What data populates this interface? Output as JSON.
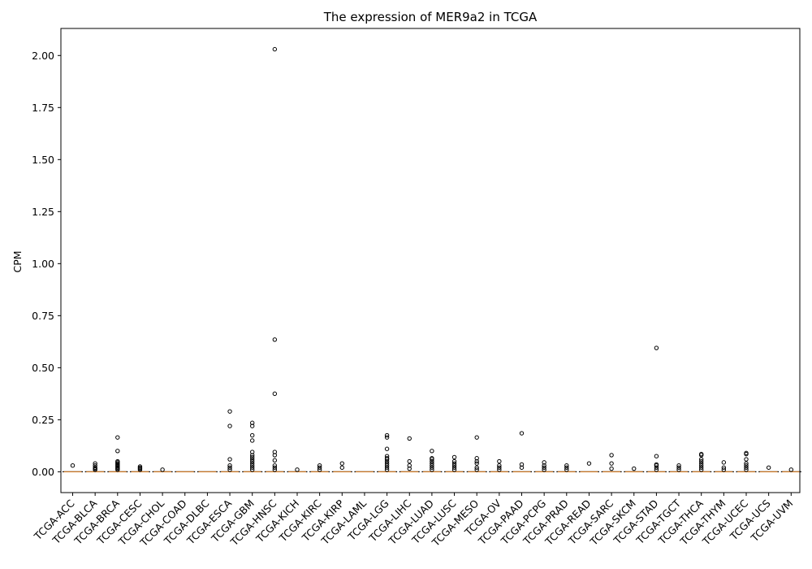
{
  "chart_data": {
    "type": "box",
    "title": "The expression of MER9a2 in TCGA",
    "xlabel": "",
    "ylabel": "CPM",
    "ylim": [
      -0.1,
      2.13
    ],
    "yticks": [
      "0.00",
      "0.25",
      "0.50",
      "0.75",
      "1.00",
      "1.25",
      "1.50",
      "1.75",
      "2.00"
    ],
    "grid": false,
    "categories": [
      "TCGA-ACC",
      "TCGA-BLCA",
      "TCGA-BRCA",
      "TCGA-CESC",
      "TCGA-CHOL",
      "TCGA-COAD",
      "TCGA-DLBC",
      "TCGA-ESCA",
      "TCGA-GBM",
      "TCGA-HNSC",
      "TCGA-KICH",
      "TCGA-KIRC",
      "TCGA-KIRP",
      "TCGA-LAML",
      "TCGA-LGG",
      "TCGA-LIHC",
      "TCGA-LUAD",
      "TCGA-LUSC",
      "TCGA-MESO",
      "TCGA-OV",
      "TCGA-PAAD",
      "TCGA-PCPG",
      "TCGA-PRAD",
      "TCGA-READ",
      "TCGA-SARC",
      "TCGA-SKCM",
      "TCGA-STAD",
      "TCGA-TGCT",
      "TCGA-THCA",
      "TCGA-THYM",
      "TCGA-UCEC",
      "TCGA-UCS",
      "TCGA-UVM"
    ],
    "medians": [
      0,
      0,
      0,
      0,
      0,
      0,
      0,
      0,
      0,
      0,
      0,
      0,
      0,
      0,
      0,
      0,
      0,
      0,
      0,
      0,
      0,
      0,
      0,
      0,
      0,
      0,
      0,
      0,
      0,
      0,
      0,
      0,
      0
    ],
    "outliers": [
      [
        0.03
      ],
      [
        0.04,
        0.03,
        0.02,
        0.015,
        0.01
      ],
      [
        0.165,
        0.1,
        0.05,
        0.045,
        0.04,
        0.035,
        0.03,
        0.025,
        0.02,
        0.015,
        0.01
      ],
      [
        0.025,
        0.02,
        0.015,
        0.01
      ],
      [
        0.01
      ],
      [],
      [],
      [
        0.29,
        0.22,
        0.06,
        0.03,
        0.02,
        0.01
      ],
      [
        0.235,
        0.22,
        0.175,
        0.15,
        0.095,
        0.08,
        0.07,
        0.06,
        0.05,
        0.04,
        0.03,
        0.02,
        0.01
      ],
      [
        2.03,
        0.635,
        0.375,
        0.095,
        0.08,
        0.055,
        0.03,
        0.02,
        0.01
      ],
      [
        0.01
      ],
      [
        0.03,
        0.02,
        0.01
      ],
      [
        0.04,
        0.02
      ],
      [],
      [
        0.175,
        0.165,
        0.11,
        0.075,
        0.065,
        0.06,
        0.05,
        0.04,
        0.03,
        0.02,
        0.01
      ],
      [
        0.16,
        0.05,
        0.03,
        0.015
      ],
      [
        0.1,
        0.065,
        0.06,
        0.05,
        0.04,
        0.03,
        0.02,
        0.01
      ],
      [
        0.07,
        0.05,
        0.04,
        0.03,
        0.02,
        0.01
      ],
      [
        0.165,
        0.065,
        0.05,
        0.04,
        0.02,
        0.01
      ],
      [
        0.05,
        0.03,
        0.02,
        0.01
      ],
      [
        0.185,
        0.035,
        0.02
      ],
      [
        0.045,
        0.03,
        0.02,
        0.01
      ],
      [
        0.03,
        0.02,
        0.01
      ],
      [
        0.04
      ],
      [
        0.08,
        0.04,
        0.015
      ],
      [
        0.015
      ],
      [
        0.595,
        0.075,
        0.035,
        0.03,
        0.02,
        0.01
      ],
      [
        0.03,
        0.02,
        0.01
      ],
      [
        0.085,
        0.08,
        0.06,
        0.05,
        0.04,
        0.03,
        0.02,
        0.01
      ],
      [
        0.045,
        0.02,
        0.01
      ],
      [
        0.09,
        0.085,
        0.06,
        0.04,
        0.03,
        0.02,
        0.01
      ],
      [
        0.02
      ],
      [
        0.01
      ]
    ]
  }
}
